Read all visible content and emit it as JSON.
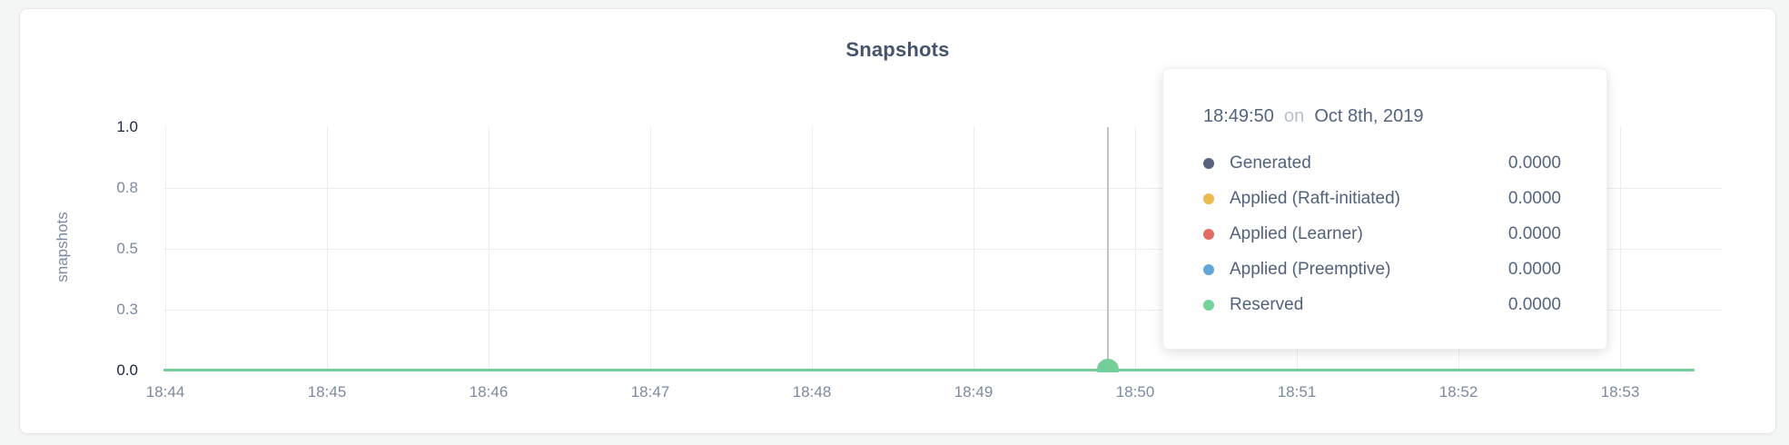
{
  "page": {
    "background": "#f4f5f5",
    "card_background": "#ffffff"
  },
  "chart_data": {
    "type": "line",
    "title": "Snapshots",
    "xlabel": "",
    "ylabel": "snapshots",
    "ylim": [
      0,
      1
    ],
    "grid": true,
    "x_ticks": [
      "18:44",
      "18:45",
      "18:46",
      "18:47",
      "18:48",
      "18:49",
      "18:50",
      "18:51",
      "18:52",
      "18:53"
    ],
    "y_ticks": [
      {
        "label": "1.0",
        "value": 1.0
      },
      {
        "label": "0.8",
        "value": 0.75
      },
      {
        "label": "0.5",
        "value": 0.5
      },
      {
        "label": "0.3",
        "value": 0.25
      },
      {
        "label": "0.0",
        "value": 0.0
      }
    ],
    "series": [
      {
        "name": "Generated",
        "color": "#57627c",
        "values": [
          0,
          0,
          0,
          0,
          0,
          0,
          0,
          0,
          0,
          0
        ]
      },
      {
        "name": "Applied (Raft-initiated)",
        "color": "#eaba4d",
        "values": [
          0,
          0,
          0,
          0,
          0,
          0,
          0,
          0,
          0,
          0
        ]
      },
      {
        "name": "Applied (Learner)",
        "color": "#e26c62",
        "values": [
          0,
          0,
          0,
          0,
          0,
          0,
          0,
          0,
          0,
          0
        ]
      },
      {
        "name": "Applied (Preemptive)",
        "color": "#63a6da",
        "values": [
          0,
          0,
          0,
          0,
          0,
          0,
          0,
          0,
          0,
          0
        ]
      },
      {
        "name": "Reserved",
        "color": "#74ce99",
        "values": [
          0,
          0,
          0,
          0,
          0,
          0,
          0,
          0,
          0,
          0
        ]
      }
    ],
    "hover_guideline_color": "#c0c3c8",
    "gridline_color": "#ededef"
  },
  "tooltip": {
    "time": "18:49:50",
    "conjunction": "on",
    "date": "Oct 8th, 2019",
    "rows": [
      {
        "label": "Generated",
        "value": "0.0000",
        "color": "#57627c"
      },
      {
        "label": "Applied (Raft-initiated)",
        "value": "0.0000",
        "color": "#eaba4d"
      },
      {
        "label": "Applied (Learner)",
        "value": "0.0000",
        "color": "#e26c62"
      },
      {
        "label": "Applied (Preemptive)",
        "value": "0.0000",
        "color": "#63a6da"
      },
      {
        "label": "Reserved",
        "value": "0.0000",
        "color": "#74d29a"
      }
    ]
  }
}
